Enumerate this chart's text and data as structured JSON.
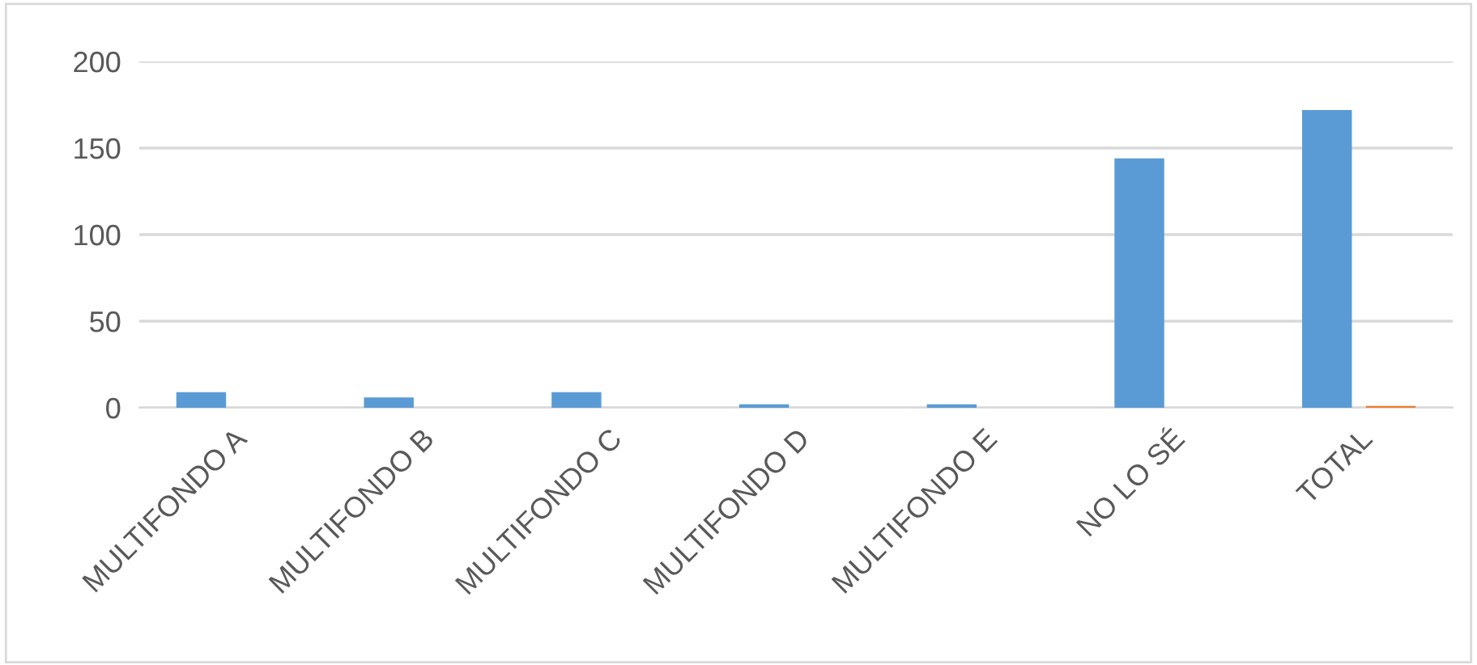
{
  "chart_data": {
    "type": "bar",
    "categories": [
      "MULTIFONDO A",
      "MULTIFONDO B",
      "MULTIFONDO C",
      "MULTIFONDO D",
      "MULTIFONDO E",
      "NO LO SÉ",
      "TOTAL"
    ],
    "series": [
      {
        "color": "#5b9bd5",
        "values": [
          9,
          6,
          9,
          2,
          2,
          144,
          172
        ]
      },
      {
        "color": "#ed7d31",
        "values": [
          0,
          0,
          0,
          0,
          0,
          0,
          1
        ]
      }
    ],
    "ylim": [
      0,
      200
    ],
    "yticks": [
      0,
      50,
      100,
      150,
      200
    ],
    "grid": "y",
    "legend": false
  }
}
